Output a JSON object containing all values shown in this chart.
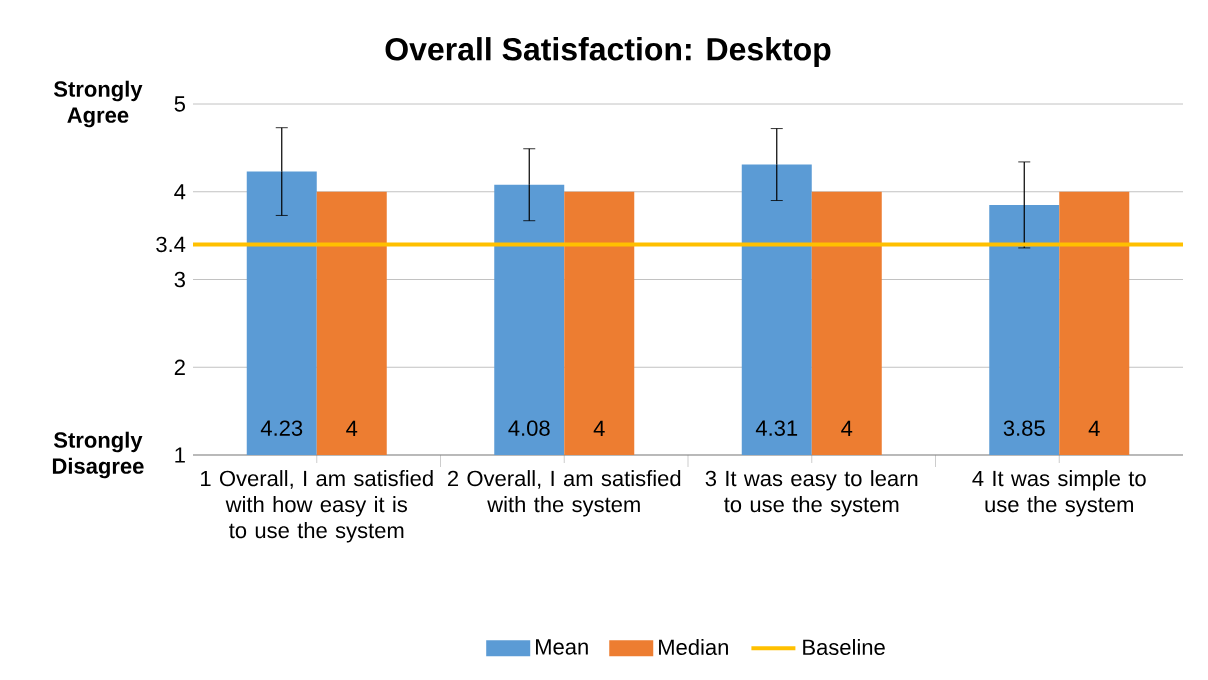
{
  "chart_data": {
    "type": "bar",
    "title": "Overall Satisfaction: Desktop",
    "categories": [
      "1 Overall, I am satisfied with how easy it is to use the system",
      "2 Overall, I am satisfied with the system",
      "3 It was easy to learn to use the system",
      "4 It was simple to use the system"
    ],
    "series": [
      {
        "name": "Mean",
        "color": "#5b9bd5",
        "values": [
          4.23,
          4.08,
          4.31,
          3.85
        ],
        "errors": [
          0.5,
          0.41,
          0.41,
          0.49
        ]
      },
      {
        "name": "Median",
        "color": "#ed7d31",
        "values": [
          4,
          4,
          4,
          4
        ]
      }
    ],
    "ylim": [
      1,
      5
    ],
    "yticks": [
      1,
      2,
      3,
      3.4,
      4,
      5
    ],
    "ref_lines": [
      {
        "axis": "y",
        "value": 3.4,
        "label": "Baseline",
        "color": "#ffc000"
      }
    ],
    "annotations": [
      "Strongly Agree",
      "Strongly Disagree"
    ],
    "data_labels": true,
    "grid": "y",
    "legend": "bottom"
  }
}
